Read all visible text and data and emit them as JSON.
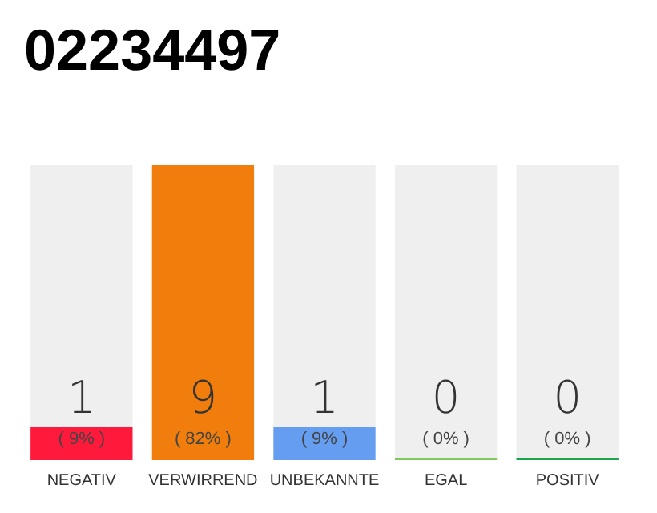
{
  "chart_data": {
    "type": "bar",
    "title": "02234497",
    "categories": [
      "NEGATIV",
      "VERWIRREND",
      "UNBEKANNTE",
      "EGAL",
      "POSITIV"
    ],
    "values": [
      1,
      9,
      1,
      0,
      0
    ],
    "colors": [
      "#ff1a3c",
      "#f07d0c",
      "#659ef0",
      "#80c860",
      "#1aa64a"
    ],
    "data_labels": true,
    "annotations": [
      "( 9% )",
      "( 82% )",
      "( 9% )",
      "( 0% )",
      "( 0% )"
    ],
    "grid": false
  }
}
